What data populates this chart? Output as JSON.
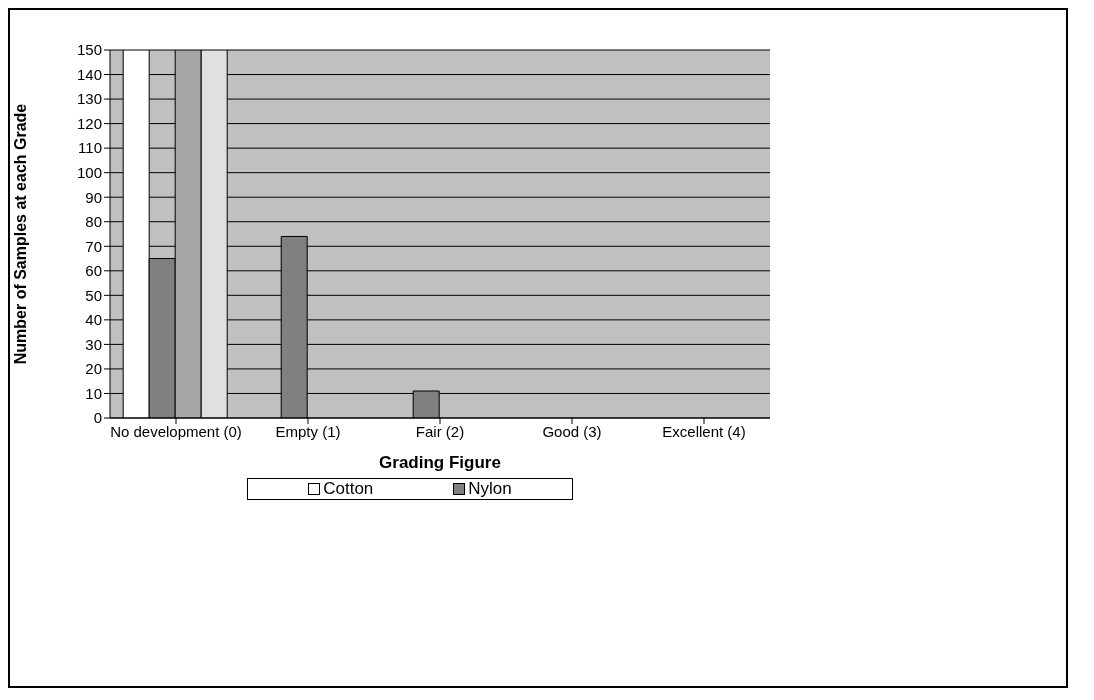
{
  "chart_data": {
    "type": "bar",
    "xlabel": "Grading Figure",
    "ylabel": "Number of Samples at each Grade",
    "categories": [
      "No development (0)",
      "Empty (1)",
      "Fair (2)",
      "Good (3)",
      "Excellent (4)"
    ],
    "series": [
      {
        "name": "Cotton",
        "color": "#ffffff",
        "values": [
          150,
          0,
          0,
          0,
          0
        ]
      },
      {
        "name": "Nylon",
        "color": "#808080",
        "values": [
          65,
          74,
          11,
          0,
          0
        ]
      },
      {
        "color": "#a6a6a6",
        "values": [
          150,
          0,
          0,
          0,
          0
        ]
      },
      {
        "color": "#e0e0e0",
        "values": [
          150,
          0,
          0,
          0,
          0
        ]
      }
    ],
    "ylim": [
      0,
      150
    ],
    "yticks": [
      0,
      10,
      20,
      30,
      40,
      50,
      60,
      70,
      80,
      90,
      100,
      110,
      120,
      130,
      140,
      150
    ],
    "grid": "y",
    "legend": "bottom"
  }
}
